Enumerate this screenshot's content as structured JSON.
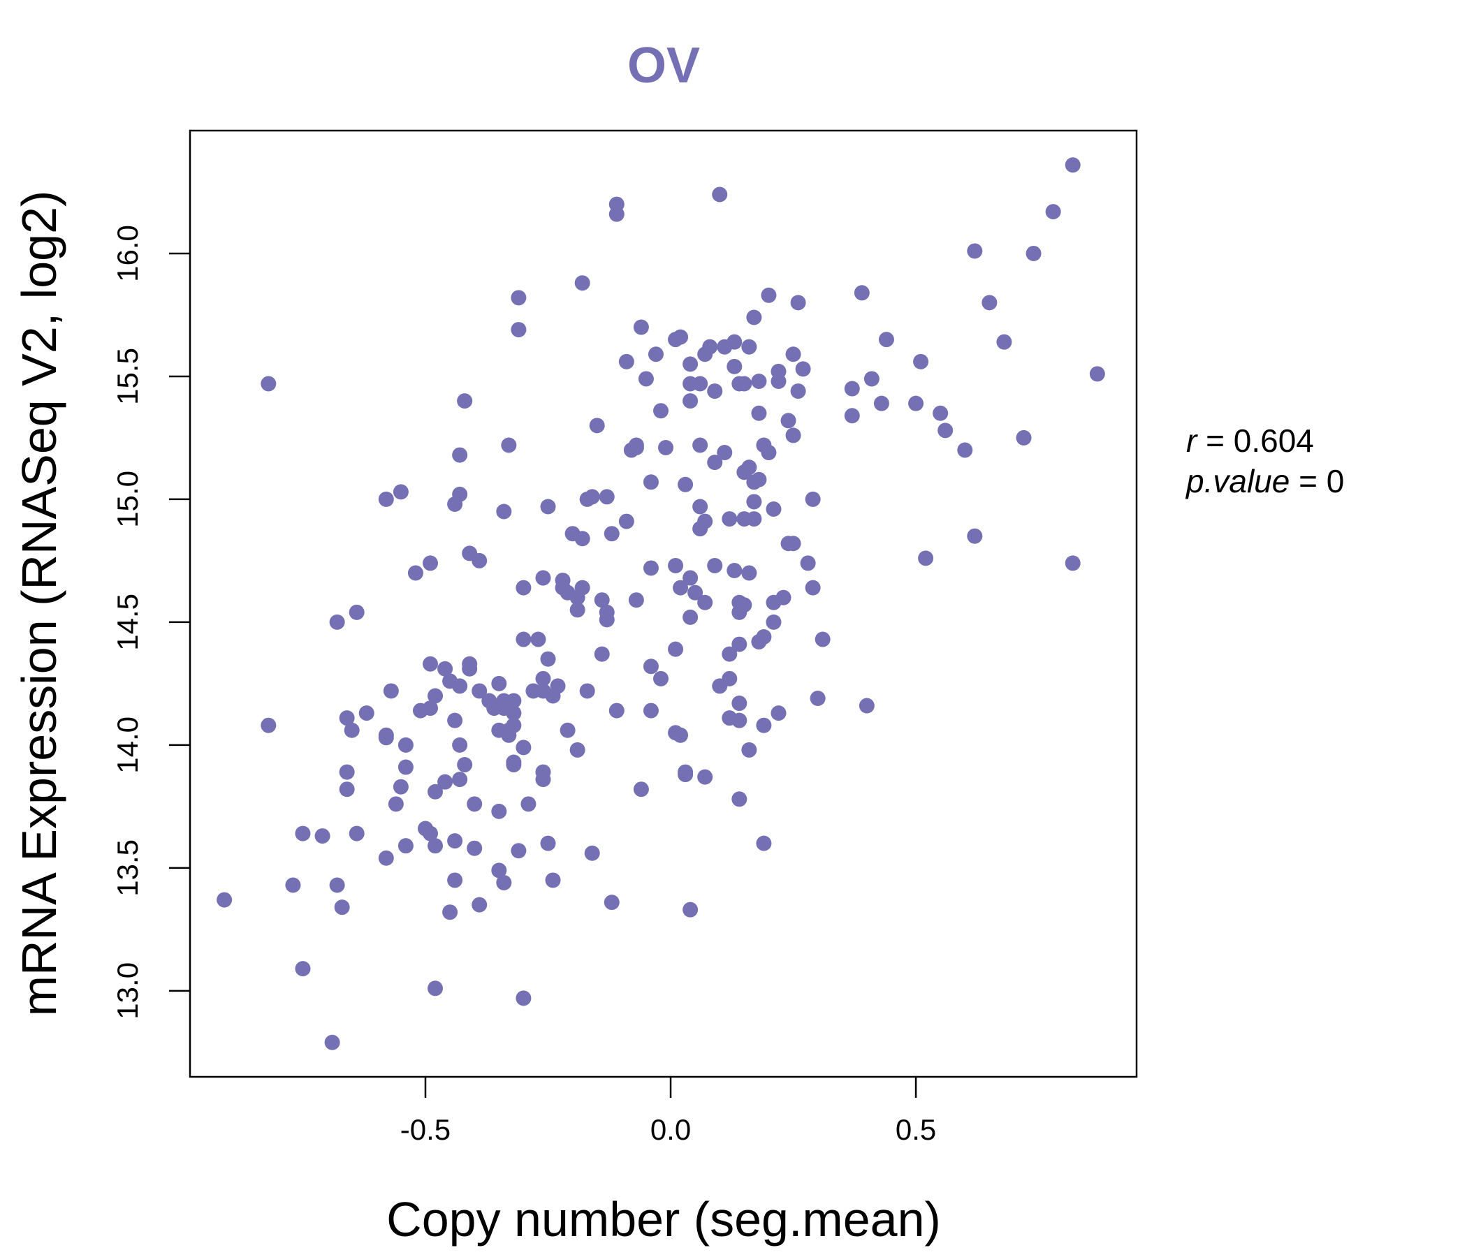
{
  "chart_data": {
    "type": "scatter",
    "title": "OV",
    "xlabel": "Copy number (seg.mean)",
    "ylabel": "mRNA Expression (RNASeq V2, log2)",
    "xlim": [
      -0.98,
      0.95
    ],
    "ylim": [
      12.65,
      16.5
    ],
    "x_ticks": [
      -0.5,
      0.0,
      0.5
    ],
    "x_tick_labels": [
      "-0.5",
      "0.0",
      "0.5"
    ],
    "y_ticks": [
      13.0,
      13.5,
      14.0,
      14.5,
      15.0,
      15.5,
      16.0
    ],
    "y_tick_labels": [
      "13.0",
      "13.5",
      "14.0",
      "14.5",
      "15.0",
      "15.5",
      "16.0"
    ],
    "grid": false,
    "point_color": "#7570B3",
    "title_color": "#7570B3",
    "stats": {
      "r_label": "r",
      "r_value": "0.604",
      "p_label": "p.value",
      "p_value": "0"
    },
    "points": [
      [
        -0.91,
        13.37
      ],
      [
        -0.82,
        15.47
      ],
      [
        -0.82,
        14.08
      ],
      [
        -0.77,
        13.43
      ],
      [
        -0.75,
        13.09
      ],
      [
        -0.75,
        13.64
      ],
      [
        -0.71,
        13.63
      ],
      [
        -0.69,
        12.79
      ],
      [
        -0.68,
        14.5
      ],
      [
        -0.68,
        13.43
      ],
      [
        -0.67,
        13.34
      ],
      [
        -0.66,
        14.11
      ],
      [
        -0.66,
        13.89
      ],
      [
        -0.66,
        13.82
      ],
      [
        -0.65,
        14.06
      ],
      [
        -0.64,
        14.54
      ],
      [
        -0.64,
        13.64
      ],
      [
        -0.62,
        14.13
      ],
      [
        -0.58,
        15.0
      ],
      [
        -0.58,
        14.04
      ],
      [
        -0.58,
        14.03
      ],
      [
        -0.58,
        13.54
      ],
      [
        -0.57,
        14.22
      ],
      [
        -0.56,
        13.76
      ],
      [
        -0.55,
        13.83
      ],
      [
        -0.55,
        15.03
      ],
      [
        -0.54,
        13.91
      ],
      [
        -0.54,
        14.0
      ],
      [
        -0.54,
        13.59
      ],
      [
        -0.52,
        14.7
      ],
      [
        -0.51,
        14.14
      ],
      [
        -0.5,
        13.66
      ],
      [
        -0.49,
        14.15
      ],
      [
        -0.49,
        13.64
      ],
      [
        -0.49,
        14.33
      ],
      [
        -0.49,
        14.74
      ],
      [
        -0.48,
        14.2
      ],
      [
        -0.48,
        13.81
      ],
      [
        -0.48,
        13.59
      ],
      [
        -0.48,
        13.01
      ],
      [
        -0.46,
        14.31
      ],
      [
        -0.46,
        13.85
      ],
      [
        -0.45,
        13.32
      ],
      [
        -0.45,
        14.26
      ],
      [
        -0.44,
        14.1
      ],
      [
        -0.44,
        14.98
      ],
      [
        -0.44,
        13.61
      ],
      [
        -0.44,
        13.45
      ],
      [
        -0.43,
        15.02
      ],
      [
        -0.43,
        15.18
      ],
      [
        -0.43,
        14.0
      ],
      [
        -0.43,
        13.86
      ],
      [
        -0.43,
        14.24
      ],
      [
        -0.42,
        15.4
      ],
      [
        -0.42,
        13.92
      ],
      [
        -0.41,
        14.78
      ],
      [
        -0.41,
        14.31
      ],
      [
        -0.41,
        14.33
      ],
      [
        -0.4,
        13.76
      ],
      [
        -0.4,
        13.58
      ],
      [
        -0.39,
        14.22
      ],
      [
        -0.39,
        14.75
      ],
      [
        -0.39,
        13.35
      ],
      [
        -0.37,
        14.18
      ],
      [
        -0.36,
        14.15
      ],
      [
        -0.35,
        13.49
      ],
      [
        -0.35,
        14.25
      ],
      [
        -0.35,
        13.73
      ],
      [
        -0.35,
        14.06
      ],
      [
        -0.34,
        14.95
      ],
      [
        -0.34,
        13.44
      ],
      [
        -0.34,
        14.18
      ],
      [
        -0.34,
        14.15
      ],
      [
        -0.33,
        14.04
      ],
      [
        -0.33,
        14.06
      ],
      [
        -0.33,
        15.22
      ],
      [
        -0.32,
        14.18
      ],
      [
        -0.32,
        14.13
      ],
      [
        -0.32,
        14.08
      ],
      [
        -0.32,
        13.92
      ],
      [
        -0.32,
        13.93
      ],
      [
        -0.31,
        15.82
      ],
      [
        -0.31,
        15.69
      ],
      [
        -0.31,
        13.57
      ],
      [
        -0.3,
        14.64
      ],
      [
        -0.3,
        13.99
      ],
      [
        -0.3,
        12.97
      ],
      [
        -0.3,
        14.43
      ],
      [
        -0.29,
        13.76
      ],
      [
        -0.28,
        14.22
      ],
      [
        -0.27,
        14.43
      ],
      [
        -0.26,
        14.68
      ],
      [
        -0.26,
        14.22
      ],
      [
        -0.26,
        14.27
      ],
      [
        -0.26,
        13.89
      ],
      [
        -0.26,
        13.86
      ],
      [
        -0.25,
        14.35
      ],
      [
        -0.25,
        13.6
      ],
      [
        -0.25,
        14.97
      ],
      [
        -0.24,
        13.45
      ],
      [
        -0.24,
        14.2
      ],
      [
        -0.23,
        14.24
      ],
      [
        -0.22,
        14.67
      ],
      [
        -0.22,
        14.64
      ],
      [
        -0.21,
        14.62
      ],
      [
        -0.21,
        14.06
      ],
      [
        -0.2,
        14.86
      ],
      [
        -0.19,
        14.6
      ],
      [
        -0.19,
        13.98
      ],
      [
        -0.19,
        14.55
      ],
      [
        -0.18,
        14.64
      ],
      [
        -0.18,
        15.88
      ],
      [
        -0.18,
        14.84
      ],
      [
        -0.17,
        15.0
      ],
      [
        -0.17,
        14.22
      ],
      [
        -0.16,
        13.56
      ],
      [
        -0.16,
        15.01
      ],
      [
        -0.15,
        15.3
      ],
      [
        -0.14,
        14.59
      ],
      [
        -0.14,
        14.37
      ],
      [
        -0.13,
        14.51
      ],
      [
        -0.13,
        14.54
      ],
      [
        -0.13,
        15.01
      ],
      [
        -0.12,
        14.86
      ],
      [
        -0.12,
        13.36
      ],
      [
        -0.11,
        16.2
      ],
      [
        -0.11,
        16.16
      ],
      [
        -0.11,
        14.14
      ],
      [
        -0.09,
        14.91
      ],
      [
        -0.09,
        15.56
      ],
      [
        -0.08,
        15.2
      ],
      [
        -0.07,
        15.22
      ],
      [
        -0.07,
        14.59
      ],
      [
        -0.07,
        15.21
      ],
      [
        -0.06,
        15.7
      ],
      [
        -0.06,
        13.82
      ],
      [
        -0.05,
        15.49
      ],
      [
        -0.04,
        15.07
      ],
      [
        -0.04,
        14.72
      ],
      [
        -0.04,
        14.32
      ],
      [
        -0.04,
        14.14
      ],
      [
        -0.03,
        15.59
      ],
      [
        -0.02,
        14.27
      ],
      [
        -0.02,
        15.36
      ],
      [
        -0.01,
        15.21
      ],
      [
        0.01,
        15.65
      ],
      [
        0.01,
        14.73
      ],
      [
        0.01,
        14.05
      ],
      [
        0.01,
        14.39
      ],
      [
        0.02,
        15.66
      ],
      [
        0.02,
        14.64
      ],
      [
        0.02,
        14.04
      ],
      [
        0.03,
        13.89
      ],
      [
        0.03,
        13.88
      ],
      [
        0.03,
        15.06
      ],
      [
        0.04,
        15.55
      ],
      [
        0.04,
        15.47
      ],
      [
        0.04,
        15.4
      ],
      [
        0.04,
        14.68
      ],
      [
        0.04,
        14.52
      ],
      [
        0.04,
        13.33
      ],
      [
        0.05,
        14.62
      ],
      [
        0.06,
        15.22
      ],
      [
        0.06,
        14.97
      ],
      [
        0.06,
        14.88
      ],
      [
        0.06,
        15.47
      ],
      [
        0.07,
        15.59
      ],
      [
        0.07,
        14.91
      ],
      [
        0.07,
        14.58
      ],
      [
        0.07,
        13.87
      ],
      [
        0.08,
        15.62
      ],
      [
        0.09,
        15.44
      ],
      [
        0.09,
        14.73
      ],
      [
        0.09,
        15.15
      ],
      [
        0.1,
        16.24
      ],
      [
        0.1,
        14.24
      ],
      [
        0.11,
        15.62
      ],
      [
        0.11,
        15.19
      ],
      [
        0.12,
        14.92
      ],
      [
        0.12,
        14.27
      ],
      [
        0.12,
        14.37
      ],
      [
        0.12,
        14.11
      ],
      [
        0.13,
        14.71
      ],
      [
        0.13,
        15.54
      ],
      [
        0.13,
        15.64
      ],
      [
        0.14,
        15.47
      ],
      [
        0.14,
        14.58
      ],
      [
        0.14,
        14.54
      ],
      [
        0.14,
        14.41
      ],
      [
        0.14,
        14.17
      ],
      [
        0.14,
        14.1
      ],
      [
        0.14,
        13.78
      ],
      [
        0.15,
        15.11
      ],
      [
        0.15,
        14.92
      ],
      [
        0.15,
        15.47
      ],
      [
        0.15,
        14.57
      ],
      [
        0.16,
        15.62
      ],
      [
        0.16,
        15.13
      ],
      [
        0.16,
        14.7
      ],
      [
        0.16,
        13.98
      ],
      [
        0.17,
        15.07
      ],
      [
        0.17,
        14.99
      ],
      [
        0.17,
        14.92
      ],
      [
        0.17,
        15.74
      ],
      [
        0.18,
        15.35
      ],
      [
        0.18,
        15.08
      ],
      [
        0.18,
        14.42
      ],
      [
        0.18,
        15.48
      ],
      [
        0.19,
        15.22
      ],
      [
        0.19,
        14.44
      ],
      [
        0.19,
        14.08
      ],
      [
        0.19,
        13.6
      ],
      [
        0.2,
        15.83
      ],
      [
        0.2,
        15.19
      ],
      [
        0.21,
        14.58
      ],
      [
        0.21,
        14.96
      ],
      [
        0.21,
        14.5
      ],
      [
        0.22,
        15.52
      ],
      [
        0.22,
        15.48
      ],
      [
        0.22,
        14.13
      ],
      [
        0.23,
        14.6
      ],
      [
        0.24,
        14.82
      ],
      [
        0.24,
        15.32
      ],
      [
        0.25,
        15.59
      ],
      [
        0.25,
        15.26
      ],
      [
        0.25,
        14.82
      ],
      [
        0.26,
        15.8
      ],
      [
        0.26,
        15.44
      ],
      [
        0.27,
        15.53
      ],
      [
        0.28,
        14.74
      ],
      [
        0.29,
        15.0
      ],
      [
        0.29,
        14.64
      ],
      [
        0.3,
        14.19
      ],
      [
        0.31,
        14.43
      ],
      [
        0.37,
        15.45
      ],
      [
        0.37,
        15.34
      ],
      [
        0.39,
        15.84
      ],
      [
        0.4,
        14.16
      ],
      [
        0.41,
        15.49
      ],
      [
        0.43,
        15.39
      ],
      [
        0.44,
        15.65
      ],
      [
        0.5,
        15.39
      ],
      [
        0.51,
        15.56
      ],
      [
        0.52,
        14.76
      ],
      [
        0.55,
        15.35
      ],
      [
        0.56,
        15.28
      ],
      [
        0.6,
        15.2
      ],
      [
        0.62,
        16.01
      ],
      [
        0.62,
        14.85
      ],
      [
        0.65,
        15.8
      ],
      [
        0.68,
        15.64
      ],
      [
        0.72,
        15.25
      ],
      [
        0.74,
        16.0
      ],
      [
        0.78,
        16.17
      ],
      [
        0.82,
        16.36
      ],
      [
        0.82,
        14.74
      ],
      [
        0.87,
        15.51
      ]
    ]
  }
}
